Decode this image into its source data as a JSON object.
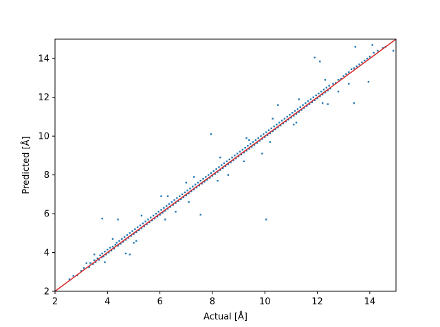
{
  "chart_data": {
    "type": "scatter",
    "title": "",
    "xlabel": "Actual [Å]",
    "ylabel": "Predicted [Å]",
    "xlim": [
      2,
      15
    ],
    "ylim": [
      2,
      15
    ],
    "xticks": [
      2,
      4,
      6,
      8,
      10,
      12,
      14
    ],
    "yticks": [
      2,
      4,
      6,
      8,
      10,
      12,
      14
    ],
    "grid": false,
    "colors": {
      "points": "#1f77b4",
      "fit_line": "#d62728"
    },
    "reference_line": {
      "type": "y=x",
      "from": [
        2,
        2
      ],
      "to": [
        15,
        15
      ]
    },
    "series": [
      {
        "points": [
          [
            2.55,
            2.62
          ],
          [
            2.7,
            2.8
          ],
          [
            2.85,
            2.82
          ],
          [
            3.0,
            3.05
          ],
          [
            3.1,
            3.2
          ],
          [
            3.2,
            3.45
          ],
          [
            3.3,
            3.25
          ],
          [
            3.35,
            3.45
          ],
          [
            3.45,
            3.4
          ],
          [
            3.5,
            3.6
          ],
          [
            3.55,
            3.5
          ],
          [
            3.62,
            3.7
          ],
          [
            3.68,
            3.62
          ],
          [
            3.72,
            3.85
          ],
          [
            3.78,
            3.75
          ],
          [
            3.8,
            3.95
          ],
          [
            3.85,
            3.8
          ],
          [
            3.9,
            4.05
          ],
          [
            3.95,
            3.9
          ],
          [
            4.0,
            4.15
          ],
          [
            4.05,
            4.0
          ],
          [
            4.1,
            4.25
          ],
          [
            4.15,
            4.1
          ],
          [
            4.2,
            4.3
          ],
          [
            4.25,
            4.2
          ],
          [
            4.3,
            4.4
          ],
          [
            4.35,
            4.5
          ],
          [
            4.4,
            4.35
          ],
          [
            4.45,
            4.6
          ],
          [
            4.5,
            4.45
          ],
          [
            4.55,
            4.7
          ],
          [
            4.6,
            4.55
          ],
          [
            4.65,
            4.8
          ],
          [
            4.7,
            4.65
          ],
          [
            4.75,
            4.9
          ],
          [
            4.8,
            4.75
          ],
          [
            4.85,
            5.0
          ],
          [
            4.9,
            4.85
          ],
          [
            4.95,
            5.1
          ],
          [
            5.0,
            4.95
          ],
          [
            5.05,
            5.2
          ],
          [
            5.1,
            5.05
          ],
          [
            5.15,
            5.3
          ],
          [
            5.2,
            5.15
          ],
          [
            5.25,
            5.4
          ],
          [
            5.3,
            5.25
          ],
          [
            5.35,
            5.5
          ],
          [
            5.4,
            5.35
          ],
          [
            5.45,
            5.6
          ],
          [
            5.5,
            5.45
          ],
          [
            5.55,
            5.7
          ],
          [
            5.6,
            5.55
          ],
          [
            5.65,
            5.8
          ],
          [
            5.7,
            5.65
          ],
          [
            5.75,
            5.9
          ],
          [
            5.8,
            5.75
          ],
          [
            5.85,
            6.0
          ],
          [
            5.9,
            5.85
          ],
          [
            5.95,
            6.1
          ],
          [
            6.0,
            5.95
          ],
          [
            6.05,
            6.2
          ],
          [
            6.1,
            6.05
          ],
          [
            6.15,
            6.3
          ],
          [
            6.2,
            6.15
          ],
          [
            6.25,
            6.4
          ],
          [
            6.3,
            6.25
          ],
          [
            6.35,
            6.5
          ],
          [
            6.4,
            6.35
          ],
          [
            6.45,
            6.6
          ],
          [
            6.5,
            6.45
          ],
          [
            6.55,
            6.7
          ],
          [
            6.6,
            6.55
          ],
          [
            6.65,
            6.8
          ],
          [
            6.7,
            6.65
          ],
          [
            6.75,
            6.9
          ],
          [
            6.8,
            6.75
          ],
          [
            6.85,
            7.0
          ],
          [
            6.9,
            6.85
          ],
          [
            6.95,
            7.1
          ],
          [
            7.0,
            6.95
          ],
          [
            7.05,
            7.2
          ],
          [
            7.1,
            7.05
          ],
          [
            7.15,
            7.3
          ],
          [
            7.2,
            7.15
          ],
          [
            7.25,
            7.4
          ],
          [
            7.3,
            7.25
          ],
          [
            7.35,
            7.5
          ],
          [
            7.4,
            7.35
          ],
          [
            7.45,
            7.6
          ],
          [
            7.5,
            7.45
          ],
          [
            7.55,
            7.7
          ],
          [
            7.6,
            7.55
          ],
          [
            7.65,
            7.8
          ],
          [
            7.7,
            7.65
          ],
          [
            7.75,
            7.9
          ],
          [
            7.8,
            7.75
          ],
          [
            7.85,
            8.0
          ],
          [
            7.9,
            7.85
          ],
          [
            7.95,
            8.1
          ],
          [
            8.0,
            7.95
          ],
          [
            8.05,
            8.2
          ],
          [
            8.1,
            8.05
          ],
          [
            8.15,
            8.3
          ],
          [
            8.2,
            8.15
          ],
          [
            8.25,
            8.4
          ],
          [
            8.3,
            8.25
          ],
          [
            8.35,
            8.5
          ],
          [
            8.4,
            8.35
          ],
          [
            8.45,
            8.6
          ],
          [
            8.5,
            8.45
          ],
          [
            8.55,
            8.7
          ],
          [
            8.6,
            8.55
          ],
          [
            8.65,
            8.8
          ],
          [
            8.7,
            8.65
          ],
          [
            8.75,
            8.9
          ],
          [
            8.8,
            8.75
          ],
          [
            8.85,
            9.0
          ],
          [
            8.9,
            8.85
          ],
          [
            8.95,
            9.1
          ],
          [
            9.0,
            8.95
          ],
          [
            9.05,
            9.2
          ],
          [
            9.1,
            9.05
          ],
          [
            9.15,
            9.3
          ],
          [
            9.2,
            9.15
          ],
          [
            9.25,
            9.4
          ],
          [
            9.3,
            9.25
          ],
          [
            9.35,
            9.5
          ],
          [
            9.4,
            9.35
          ],
          [
            9.45,
            9.6
          ],
          [
            9.5,
            9.45
          ],
          [
            9.55,
            9.7
          ],
          [
            9.6,
            9.55
          ],
          [
            9.65,
            9.8
          ],
          [
            9.7,
            9.65
          ],
          [
            9.75,
            9.9
          ],
          [
            9.8,
            9.75
          ],
          [
            9.85,
            10.0
          ],
          [
            9.9,
            9.85
          ],
          [
            9.95,
            10.1
          ],
          [
            10.0,
            9.95
          ],
          [
            10.05,
            10.2
          ],
          [
            10.1,
            10.05
          ],
          [
            10.15,
            10.3
          ],
          [
            10.2,
            10.15
          ],
          [
            10.25,
            10.4
          ],
          [
            10.3,
            10.25
          ],
          [
            10.35,
            10.5
          ],
          [
            10.4,
            10.35
          ],
          [
            10.45,
            10.6
          ],
          [
            10.5,
            10.45
          ],
          [
            10.55,
            10.7
          ],
          [
            10.6,
            10.55
          ],
          [
            10.65,
            10.8
          ],
          [
            10.7,
            10.65
          ],
          [
            10.75,
            10.9
          ],
          [
            10.8,
            10.75
          ],
          [
            10.85,
            11.0
          ],
          [
            10.9,
            10.85
          ],
          [
            10.95,
            11.1
          ],
          [
            11.0,
            10.95
          ],
          [
            11.05,
            11.2
          ],
          [
            11.1,
            11.05
          ],
          [
            11.15,
            11.3
          ],
          [
            11.2,
            11.15
          ],
          [
            11.25,
            11.4
          ],
          [
            11.3,
            11.25
          ],
          [
            11.35,
            11.5
          ],
          [
            11.4,
            11.35
          ],
          [
            11.45,
            11.6
          ],
          [
            11.5,
            11.45
          ],
          [
            11.55,
            11.7
          ],
          [
            11.6,
            11.55
          ],
          [
            11.65,
            11.8
          ],
          [
            11.7,
            11.65
          ],
          [
            11.75,
            11.9
          ],
          [
            11.8,
            11.75
          ],
          [
            11.85,
            12.0
          ],
          [
            11.9,
            11.85
          ],
          [
            11.95,
            12.1
          ],
          [
            12.0,
            11.95
          ],
          [
            12.05,
            12.2
          ],
          [
            12.1,
            12.05
          ],
          [
            12.15,
            12.3
          ],
          [
            12.2,
            12.15
          ],
          [
            12.25,
            12.4
          ],
          [
            12.3,
            12.25
          ],
          [
            12.35,
            12.5
          ],
          [
            12.4,
            12.35
          ],
          [
            12.45,
            12.6
          ],
          [
            12.5,
            12.45
          ],
          [
            12.6,
            12.7
          ],
          [
            12.7,
            12.75
          ],
          [
            12.8,
            12.9
          ],
          [
            12.9,
            12.95
          ],
          [
            13.0,
            13.1
          ],
          [
            13.1,
            13.2
          ],
          [
            13.2,
            13.3
          ],
          [
            13.3,
            13.45
          ],
          [
            13.4,
            13.5
          ],
          [
            13.5,
            13.6
          ],
          [
            13.6,
            13.7
          ],
          [
            13.7,
            13.8
          ],
          [
            13.8,
            13.9
          ],
          [
            13.9,
            14.0
          ],
          [
            14.0,
            14.1
          ],
          [
            14.15,
            14.3
          ],
          [
            14.3,
            14.4
          ],
          [
            14.5,
            14.55
          ],
          [
            14.6,
            14.6
          ],
          [
            14.9,
            14.4
          ],
          [
            3.8,
            5.75
          ],
          [
            4.4,
            5.7
          ],
          [
            7.55,
            5.95
          ],
          [
            10.05,
            5.7
          ],
          [
            11.9,
            14.05
          ],
          [
            12.1,
            13.85
          ],
          [
            12.4,
            11.65
          ],
          [
            13.4,
            11.7
          ],
          [
            13.95,
            12.8
          ],
          [
            7.95,
            10.1
          ],
          [
            10.5,
            11.6
          ],
          [
            9.4,
            9.8
          ],
          [
            6.05,
            6.9
          ],
          [
            5.0,
            4.5
          ],
          [
            7.0,
            7.6
          ],
          [
            8.6,
            8.0
          ],
          [
            11.2,
            10.7
          ],
          [
            12.8,
            12.3
          ],
          [
            9.9,
            9.1
          ],
          [
            6.6,
            6.1
          ],
          [
            4.7,
            3.95
          ],
          [
            4.85,
            3.9
          ],
          [
            14.1,
            14.7
          ],
          [
            13.45,
            14.6
          ],
          [
            3.5,
            3.9
          ],
          [
            4.2,
            4.7
          ],
          [
            5.3,
            5.9
          ],
          [
            6.3,
            6.9
          ],
          [
            7.3,
            7.9
          ],
          [
            8.3,
            8.9
          ],
          [
            9.3,
            9.9
          ],
          [
            10.3,
            10.9
          ],
          [
            11.3,
            11.9
          ],
          [
            12.3,
            12.9
          ],
          [
            3.9,
            3.5
          ],
          [
            5.1,
            4.6
          ],
          [
            6.2,
            5.7
          ],
          [
            7.1,
            6.6
          ],
          [
            8.2,
            7.7
          ],
          [
            9.2,
            8.7
          ],
          [
            10.2,
            9.7
          ],
          [
            11.1,
            10.6
          ],
          [
            12.2,
            11.7
          ],
          [
            13.2,
            12.7
          ]
        ]
      }
    ]
  }
}
